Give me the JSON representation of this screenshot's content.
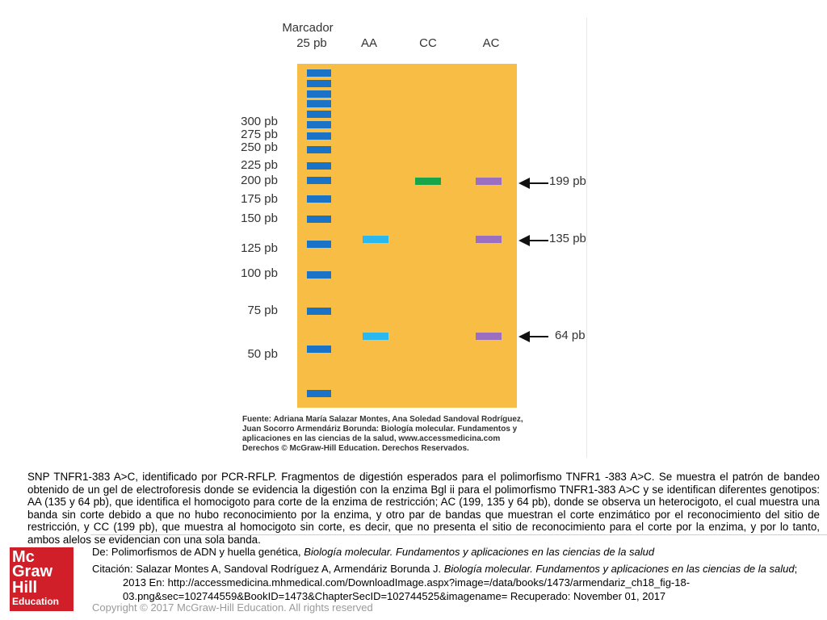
{
  "figure": {
    "marker_label": "Marcador",
    "marker_size": "25 pb",
    "lanes": [
      "AA",
      "CC",
      "AC"
    ],
    "size_labels": [
      "300 pb",
      "275 pb",
      "250 pb",
      "225 pb",
      "200 pb",
      "175 pb",
      "150 pb",
      "125 pb",
      "100 pb",
      "75 pb",
      "50 pb"
    ],
    "arrow_labels": [
      "199 pb",
      "135 pb",
      "64 pb"
    ],
    "colors": {
      "gel": "#f8bd45",
      "ladder": "#1a73c6",
      "AA": "#2ab8ef",
      "CC": "#18a54a",
      "AC": "#9a6fbf"
    },
    "credit": [
      "Fuente: Adriana María Salazar Montes, Ana Soledad Sandoval Rodríguez,",
      "Juan Socorro Armendáriz Borunda: Biología molecular. Fundamentos y",
      "aplicaciones en las ciencias de la salud, www.accessmedicina.com",
      "Derechos © McGraw-Hill Education. Derechos Reservados."
    ]
  },
  "caption": "SNP TNFR1-383 A>C, identificado por PCR-RFLP. Fragmentos de digestión esperados para el polimorfismo TNFR1 -383 A>C. Se muestra el patrón de bandeo obtenido de un gel de electroforesis donde se evidencia la digestión con la enzima Bgl ii para el polimorfismo TNFR1-383 A>C y se identifican diferentes genotipos: AA (135 y 64 pb), que identifica el homocigoto para corte de la enzima de restricción; AC (199, 135 y 64 pb), donde se observa un heterocigoto, el cual muestra una banda sin corte debido a que no hubo reconocimiento por la enzima, y otro par de bandas que muestran el corte enzimático por el reconocimiento del sitio de restricción, y CC (199 pb), que muestra al homocigoto sin corte, es decir, que no presenta el sitio de reconocimiento para el corte por la enzima, y por lo tanto, ambos alelos se evidencian con una sola banda.",
  "footer": {
    "logo": [
      "Mc",
      "Graw",
      "Hill",
      "Education"
    ],
    "from_prefix": "De: Polimorfismos de ADN y huella genética, ",
    "from_book": "Biología molecular. Fundamentos y aplicaciones en las ciencias de la salud",
    "citation_prefix": "Citación: Salazar Montes A, Sandoval Rodríguez A, Armendáriz Borunda J. ",
    "citation_book": "Biología molecular. Fundamentos y aplicaciones en las ciencias de la salud",
    "citation_suffix": "; 2013 En: http://accessmedicina.mhmedical.com/DownloadImage.aspx?image=/data/books/1473/armendariz_ch18_fig-18-03.png&sec=102744559&BookID=1473&ChapterSecID=102744525&imagename= Recuperado: November 01, 2017",
    "copyright": "Copyright © 2017 McGraw-Hill Education. All rights reserved"
  }
}
